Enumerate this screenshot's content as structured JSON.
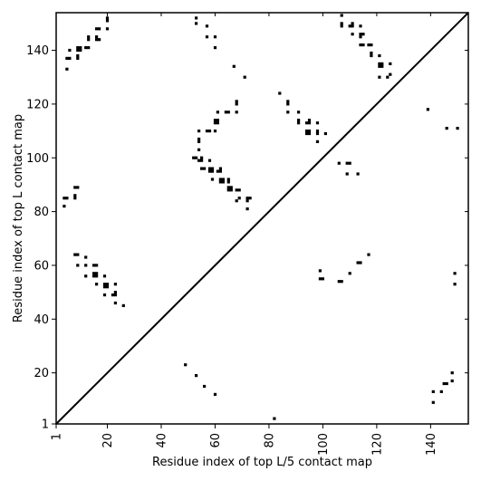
{
  "chart_data": {
    "type": "scatter",
    "xlabel": "Residue index of top L/5 contact map",
    "ylabel": "Residue index of top L contact map",
    "xlim": [
      1,
      154
    ],
    "ylim": [
      1,
      154
    ],
    "xticks": [
      1,
      20,
      40,
      60,
      80,
      100,
      120,
      140
    ],
    "yticks": [
      1,
      20,
      40,
      60,
      80,
      100,
      120,
      140
    ],
    "grid": false,
    "diagonal": true,
    "marker_color": "#000000",
    "upper_points": [
      [
        5,
        133
      ],
      [
        5,
        137
      ],
      [
        6,
        137
      ],
      [
        6,
        140
      ],
      [
        9,
        137
      ],
      [
        9,
        138
      ],
      [
        9,
        140
      ],
      [
        9,
        141
      ],
      [
        10,
        140
      ],
      [
        10,
        141
      ],
      [
        12,
        141
      ],
      [
        13,
        141
      ],
      [
        13,
        144
      ],
      [
        13,
        145
      ],
      [
        16,
        144
      ],
      [
        16,
        145
      ],
      [
        16,
        148
      ],
      [
        17,
        144
      ],
      [
        17,
        148
      ],
      [
        20,
        148
      ],
      [
        20,
        151
      ],
      [
        20,
        152
      ],
      [
        4,
        82
      ],
      [
        4,
        85
      ],
      [
        5,
        85
      ],
      [
        8,
        85
      ],
      [
        8,
        86
      ],
      [
        8,
        89
      ],
      [
        9,
        89
      ],
      [
        8,
        64
      ],
      [
        9,
        64
      ],
      [
        9,
        60
      ],
      [
        12,
        60
      ],
      [
        12,
        63
      ],
      [
        12,
        56
      ],
      [
        15,
        56
      ],
      [
        15,
        57
      ],
      [
        15,
        60
      ],
      [
        16,
        56
      ],
      [
        16,
        57
      ],
      [
        16,
        53
      ],
      [
        16,
        60
      ],
      [
        19,
        56
      ],
      [
        19,
        53
      ],
      [
        19,
        52
      ],
      [
        20,
        52
      ],
      [
        20,
        53
      ],
      [
        19,
        49
      ],
      [
        22,
        49
      ],
      [
        23,
        49
      ],
      [
        23,
        50
      ],
      [
        23,
        53
      ],
      [
        23,
        46
      ],
      [
        26,
        45
      ],
      [
        53,
        150
      ],
      [
        53,
        152
      ],
      [
        57,
        149
      ],
      [
        57,
        145
      ],
      [
        60,
        145
      ],
      [
        60,
        141
      ],
      [
        67,
        134
      ],
      [
        71,
        130
      ],
      [
        52,
        100
      ],
      [
        53,
        100
      ],
      [
        54,
        99
      ],
      [
        55,
        99
      ],
      [
        55,
        100
      ],
      [
        54,
        103
      ],
      [
        54,
        106
      ],
      [
        54,
        107
      ],
      [
        54,
        110
      ],
      [
        57,
        110
      ],
      [
        58,
        110
      ],
      [
        60,
        110
      ],
      [
        60,
        113
      ],
      [
        61,
        113
      ],
      [
        60,
        114
      ],
      [
        61,
        114
      ],
      [
        61,
        117
      ],
      [
        64,
        117
      ],
      [
        65,
        117
      ],
      [
        68,
        117
      ],
      [
        68,
        120
      ],
      [
        68,
        121
      ],
      [
        55,
        96
      ],
      [
        56,
        96
      ],
      [
        58,
        96
      ],
      [
        58,
        95
      ],
      [
        58,
        99
      ],
      [
        59,
        96
      ],
      [
        59,
        95
      ],
      [
        61,
        95
      ],
      [
        62,
        95
      ],
      [
        62,
        96
      ],
      [
        59,
        92
      ],
      [
        62,
        92
      ],
      [
        62,
        91
      ],
      [
        63,
        91
      ],
      [
        63,
        92
      ],
      [
        65,
        92
      ],
      [
        65,
        91
      ],
      [
        65,
        89
      ],
      [
        65,
        88
      ],
      [
        66,
        88
      ],
      [
        66,
        89
      ],
      [
        68,
        88
      ],
      [
        69,
        88
      ],
      [
        68,
        84
      ],
      [
        69,
        85
      ],
      [
        72,
        85
      ],
      [
        73,
        85
      ],
      [
        72,
        84
      ],
      [
        72,
        81
      ],
      [
        84,
        124
      ],
      [
        87,
        121
      ],
      [
        87,
        120
      ],
      [
        87,
        117
      ],
      [
        91,
        117
      ],
      [
        91,
        114
      ],
      [
        91,
        113
      ],
      [
        94,
        113
      ],
      [
        95,
        113
      ],
      [
        95,
        114
      ],
      [
        94,
        110
      ],
      [
        95,
        110
      ],
      [
        95,
        109
      ],
      [
        94,
        109
      ],
      [
        98,
        110
      ],
      [
        98,
        109
      ],
      [
        98,
        113
      ],
      [
        98,
        106
      ],
      [
        101,
        109
      ],
      [
        107,
        153
      ],
      [
        107,
        150
      ],
      [
        107,
        149
      ],
      [
        110,
        149
      ],
      [
        111,
        149
      ],
      [
        111,
        150
      ],
      [
        111,
        146
      ],
      [
        114,
        149
      ],
      [
        114,
        146
      ],
      [
        114,
        145
      ],
      [
        115,
        146
      ],
      [
        114,
        142
      ],
      [
        115,
        142
      ],
      [
        117,
        142
      ],
      [
        118,
        142
      ],
      [
        118,
        139
      ],
      [
        118,
        138
      ],
      [
        121,
        138
      ],
      [
        121,
        135
      ],
      [
        121,
        134
      ],
      [
        122,
        135
      ],
      [
        122,
        134
      ],
      [
        121,
        130
      ],
      [
        124,
        130
      ],
      [
        125,
        131
      ],
      [
        125,
        135
      ],
      [
        106,
        98
      ],
      [
        109,
        98
      ],
      [
        110,
        98
      ],
      [
        109,
        94
      ],
      [
        113,
        94
      ],
      [
        139,
        118
      ],
      [
        146,
        111
      ],
      [
        150,
        111
      ]
    ],
    "lower_points": [
      [
        99,
        58
      ],
      [
        99,
        55
      ],
      [
        100,
        55
      ],
      [
        106,
        54
      ],
      [
        107,
        54
      ],
      [
        110,
        57
      ],
      [
        113,
        61
      ],
      [
        114,
        61
      ],
      [
        117,
        64
      ],
      [
        49,
        23
      ],
      [
        53,
        19
      ],
      [
        56,
        15
      ],
      [
        60,
        12
      ],
      [
        82,
        3
      ],
      [
        141,
        13
      ],
      [
        141,
        9
      ],
      [
        144,
        13
      ],
      [
        145,
        16
      ],
      [
        146,
        16
      ],
      [
        148,
        17
      ],
      [
        148,
        20
      ],
      [
        149,
        53
      ],
      [
        149,
        57
      ]
    ]
  }
}
